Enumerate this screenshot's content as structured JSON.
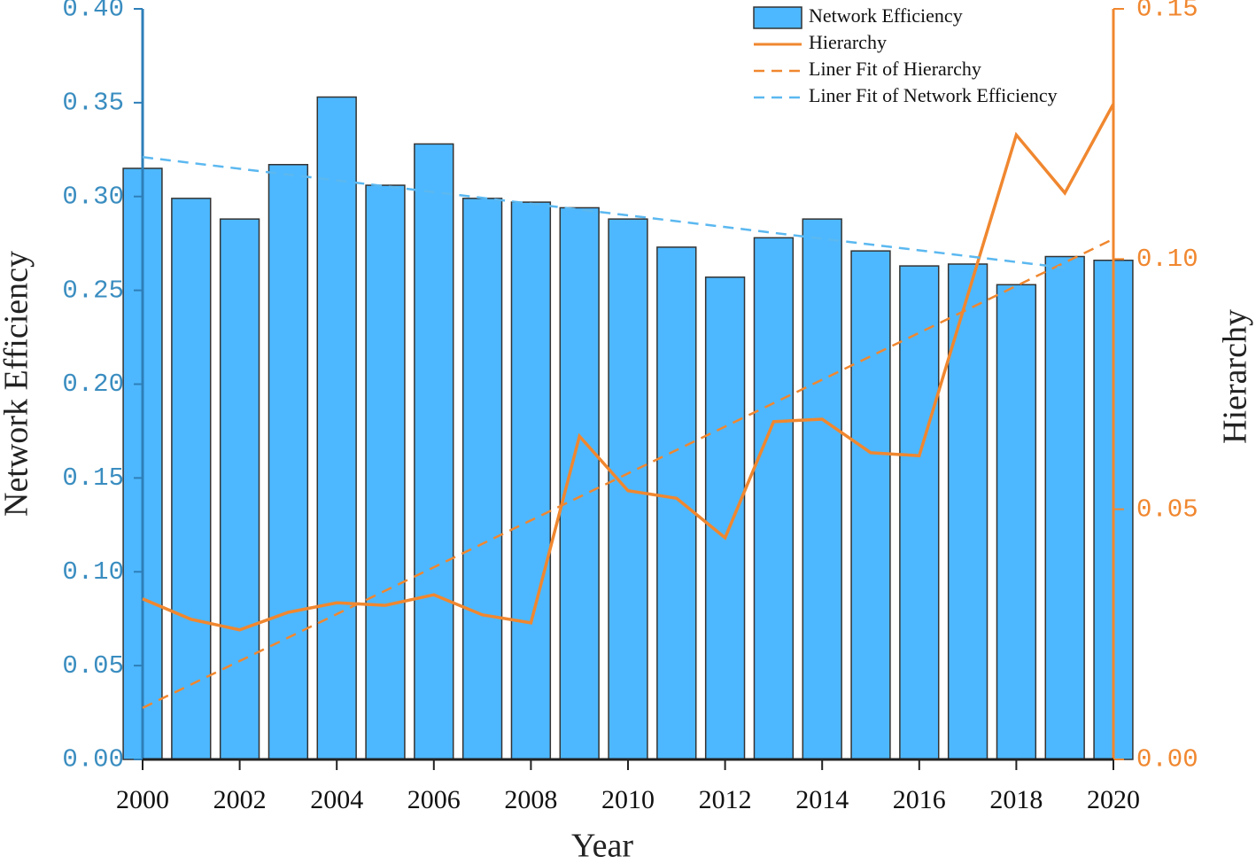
{
  "chart_data": {
    "type": "bar_line",
    "x_label": "Year",
    "y_label": "Network Efficiency",
    "y2_label": "Hierarchy",
    "x": [
      2000,
      2001,
      2002,
      2003,
      2004,
      2005,
      2006,
      2007,
      2008,
      2009,
      2010,
      2011,
      2012,
      2013,
      2014,
      2015,
      2016,
      2017,
      2018,
      2019,
      2020
    ],
    "xlim": [
      2000,
      2020
    ],
    "xticks": [
      2000,
      2002,
      2004,
      2006,
      2008,
      2010,
      2012,
      2014,
      2016,
      2018,
      2020
    ],
    "ylim": [
      0,
      0.4
    ],
    "yticks": [
      {
        "value": 0,
        "label": "0.00"
      },
      {
        "value": 0.05,
        "label": "0.05"
      },
      {
        "value": 0.1,
        "label": "0.10"
      },
      {
        "value": 0.15,
        "label": "0.15"
      },
      {
        "value": 0.2,
        "label": "0.20"
      },
      {
        "value": 0.25,
        "label": "0.25"
      },
      {
        "value": 0.3,
        "label": "0.30"
      },
      {
        "value": 0.35,
        "label": "0.35"
      },
      {
        "value": 0.4,
        "label": "0.40"
      }
    ],
    "y2lim": [
      0,
      0.15
    ],
    "y2ticks": [
      {
        "value": 0,
        "label": "0.00"
      },
      {
        "value": 0.05,
        "label": "0.05"
      },
      {
        "value": 0.1,
        "label": "0.10"
      },
      {
        "value": 0.15,
        "label": "0.15"
      }
    ],
    "legend": "upper right",
    "series": [
      {
        "name": "Network Efficiency",
        "type": "bar",
        "color": "#4db8ff",
        "values": [
          0.315,
          0.299,
          0.288,
          0.317,
          0.353,
          0.306,
          0.328,
          0.299,
          0.297,
          0.294,
          0.288,
          0.273,
          0.257,
          0.278,
          0.288,
          0.271,
          0.263,
          0.264,
          0.253,
          0.268,
          0.266
        ]
      },
      {
        "name": "Hierarchy",
        "type": "line",
        "axis": "y2",
        "color": "#f0872f",
        "values": [
          0.0321,
          0.028,
          0.0259,
          0.0294,
          0.0313,
          0.0308,
          0.0329,
          0.0289,
          0.0273,
          0.0646,
          0.0537,
          0.0522,
          0.0443,
          0.0675,
          0.068,
          0.0613,
          0.0607,
          0.0928,
          0.1248,
          0.1132,
          0.131
        ]
      },
      {
        "name": "Liner Fit of Hierarchy",
        "type": "line",
        "style": "dashed",
        "axis": "y2",
        "color": "#f0872f",
        "x": [
          2000,
          2020
        ],
        "values": [
          0.0103,
          0.104
        ]
      },
      {
        "name": "Liner Fit of Network Efficiency",
        "type": "line",
        "style": "dashed",
        "color": "#5bb8f0",
        "x": [
          2000,
          2019
        ],
        "values": [
          0.321,
          0.262
        ]
      }
    ]
  }
}
